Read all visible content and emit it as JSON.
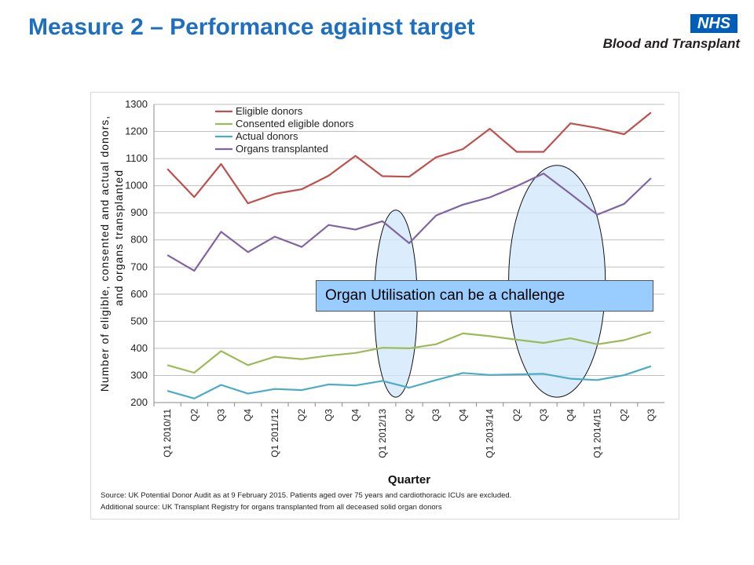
{
  "slide": {
    "title": "Measure 2 – Performance against target",
    "logo_nhs": "NHS",
    "logo_org": "Blood and Transplant",
    "nhs_color": "#005eb8"
  },
  "callout": {
    "text": "Organ Utilisation can be a challenge",
    "fill": "#99ccff"
  },
  "chart_data": {
    "type": "line",
    "title": "",
    "xlabel": "Quarter",
    "ylabel_lines": [
      "Number of eligible, consented and actual donors,",
      "and organs transplanted"
    ],
    "ylim": [
      200,
      1300
    ],
    "yticks": [
      200,
      300,
      400,
      500,
      600,
      700,
      800,
      900,
      1000,
      1100,
      1200,
      1300
    ],
    "grid": true,
    "legend_position": "top-left",
    "categories": [
      "Q1 2010/11",
      "Q2",
      "Q3",
      "Q4",
      "Q1 2011/12",
      "Q2",
      "Q3",
      "Q4",
      "Q1 2012/13",
      "Q2",
      "Q3",
      "Q4",
      "Q1 2013/14",
      "Q2",
      "Q3",
      "Q4",
      "Q1 2014/15",
      "Q2",
      "Q3"
    ],
    "series": [
      {
        "name": "Eligible donors",
        "color": "#c0504d",
        "values": [
          1062,
          958,
          1080,
          935,
          970,
          987,
          1037,
          1110,
          1035,
          1033,
          1105,
          1135,
          1210,
          1125,
          1125,
          1230,
          1213,
          1190,
          1270
        ]
      },
      {
        "name": "Consented eligible donors",
        "color": "#9bbb59",
        "values": [
          338,
          310,
          390,
          338,
          369,
          360,
          373,
          383,
          402,
          400,
          415,
          455,
          445,
          432,
          420,
          437,
          415,
          430,
          460
        ]
      },
      {
        "name": "Actual donors",
        "color": "#4bacc6",
        "values": [
          243,
          215,
          265,
          233,
          250,
          246,
          267,
          263,
          280,
          255,
          283,
          309,
          302,
          304,
          306,
          288,
          283,
          301,
          334
        ]
      },
      {
        "name": "Organs transplanted",
        "color": "#8064a2",
        "values": [
          744,
          686,
          830,
          755,
          812,
          774,
          855,
          838,
          869,
          788,
          890,
          930,
          957,
          998,
          1045,
          970,
          893,
          933,
          1028
        ]
      }
    ],
    "highlights": [
      {
        "from_index": 8,
        "to_index": 9,
        "ymin": 220,
        "ymax": 910
      },
      {
        "from_index": 13,
        "to_index": 16,
        "ymin": 220,
        "ymax": 1075
      }
    ],
    "source_lines": [
      "Source: UK Potential Donor Audit as at 9 February 2015. Patients aged over 75 years and cardiothoracic ICUs are excluded.",
      "Additional source: UK Transplant Registry for organs transplanted from all deceased solid organ donors"
    ]
  }
}
